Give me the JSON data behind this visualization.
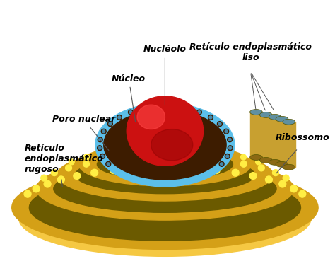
{
  "bg_color": "#ffffff",
  "title": "",
  "labels": {
    "nucleolo": "Nucléolo",
    "nucleo": "Núcleo",
    "poro_nuclear": "Poro nuclear",
    "reticulo_rugoso": "Retículo\nendoplasmático\nrugoso",
    "reticulo_liso": "Retículo endoplasmático\nliso",
    "ribossomo": "Ribossomo"
  },
  "colors": {
    "white": "#ffffff",
    "nucleolo_red": "#cc1111",
    "nucleolo_highlight": "#ff4444",
    "nucleus_brown": "#3d1c00",
    "nucleus_membrane_blue": "#5bbfea",
    "er_gold": "#d4a017",
    "er_dark": "#6b5a00",
    "er_light_gold": "#f5c842",
    "er_yellow": "#f0d060",
    "ribosome_yellow": "#ffee44",
    "smooth_er_brown": "#8b6914",
    "smooth_er_tube": "#c8a030",
    "smooth_er_inside": "#6090a0",
    "arrow_color": "#555555"
  }
}
